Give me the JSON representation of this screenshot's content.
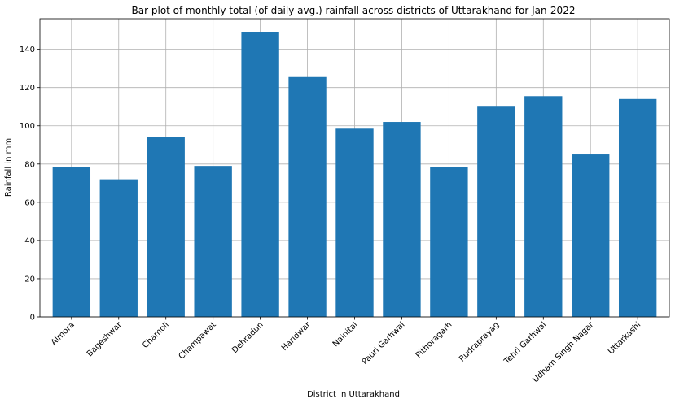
{
  "chart_data": {
    "type": "bar",
    "title": "Bar plot of monthly total (of daily avg.) rainfall across districts of Uttarakhand for Jan-2022",
    "xlabel": "District in Uttarakhand",
    "ylabel": "Rainfall in mm",
    "categories": [
      "Almora",
      "Bageshwar",
      "Chamoli",
      "Champawat",
      "Dehradun",
      "Haridwar",
      "Nainital",
      "Pauri Garhwal",
      "Pithoragarh",
      "Rudraprayag",
      "Tehri Garhwal",
      "Udham Singh Nagar",
      "Uttarkashi"
    ],
    "values": [
      78.5,
      72,
      94,
      79,
      149,
      125.5,
      98.5,
      102,
      78.5,
      110,
      115.5,
      85,
      114
    ],
    "ylim": [
      0,
      156
    ],
    "yticks": [
      0,
      20,
      40,
      60,
      80,
      100,
      120,
      140
    ],
    "grid": true,
    "bar_color": "#1f77b4",
    "x_tick_rotation": 45
  }
}
